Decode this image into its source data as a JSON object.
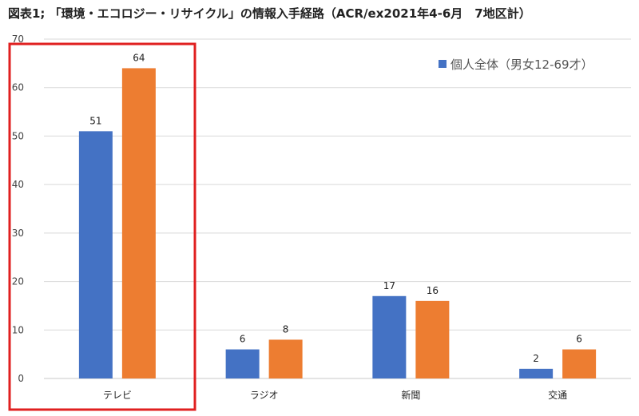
{
  "title": "図表1; 「環境・エコロジー・リサイクル」の情報入手経路（ACR/ex2021年4-6月　7地区計）",
  "chart_data": {
    "type": "bar",
    "title": "図表1; 「環境・エコロジー・リサイクル」の情報入手経路（ACR/ex2021年4-6月　7地区計）",
    "categories": [
      "テレビ",
      "ラジオ",
      "新聞",
      "交通"
    ],
    "series": [
      {
        "name": "個人全体（男女12-69才）",
        "values": [
          51,
          6,
          17,
          2
        ],
        "color": "#4472C4"
      },
      {
        "values": [
          64,
          8,
          16,
          6
        ],
        "color": "#ED7D31"
      }
    ],
    "ylim": [
      0,
      70
    ],
    "yticks": [
      0,
      10,
      20,
      30,
      40,
      50,
      60,
      70
    ],
    "grid": true,
    "legend_position": "top-right",
    "highlight": {
      "category": "テレビ",
      "color": "#E02020"
    }
  }
}
